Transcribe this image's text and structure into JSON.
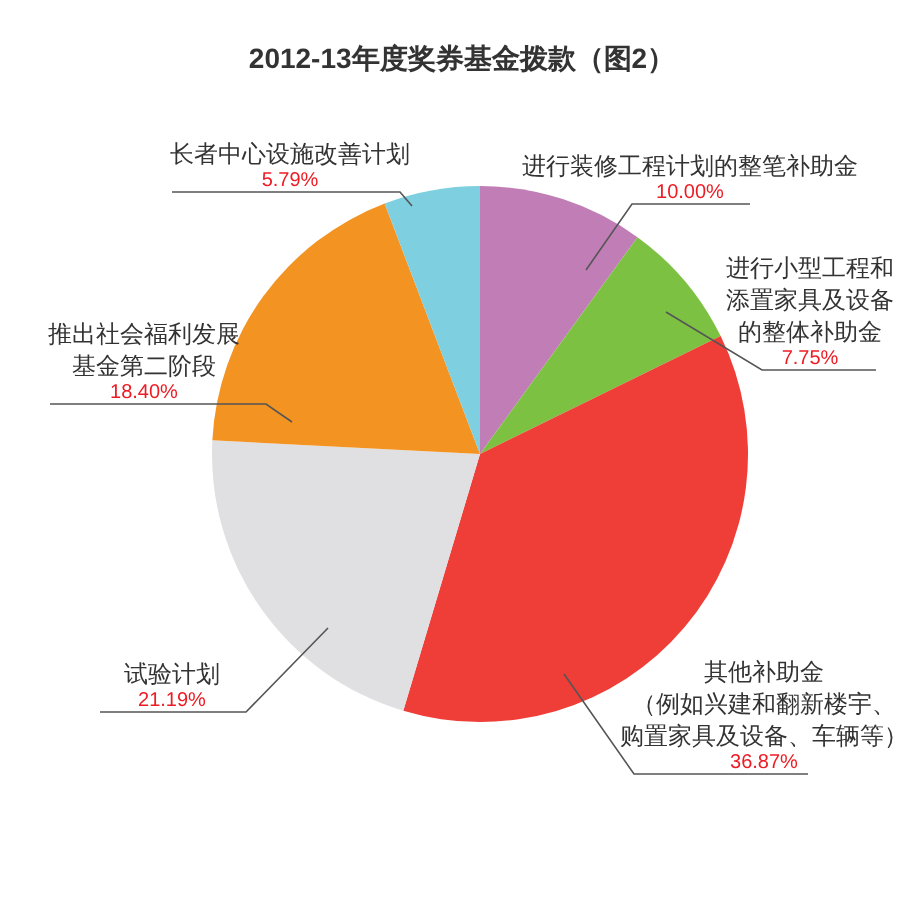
{
  "chart_data": {
    "type": "pie",
    "title": "2012-13年度奖券基金拨款（图2）",
    "categories": [
      "进行装修工程计划的整笔补助金",
      "进行小型工程和添置家具及设备的整体补助金",
      "其他补助金（例如兴建和翻新楼宇、购置家具及设备、车辆等）",
      "试验计划",
      "推出社会福利发展基金第二阶段",
      "长者中心设施改善计划"
    ],
    "values": [
      10.0,
      7.75,
      36.87,
      21.19,
      18.4,
      5.79
    ],
    "colors": [
      "#c17db5",
      "#7dc142",
      "#ee3e37",
      "#e0e0e2",
      "#f39322",
      "#7ecfdf"
    ],
    "value_labels": [
      "10.00%",
      "7.75%",
      "36.87%",
      "21.19%",
      "18.40%",
      "5.79%"
    ]
  }
}
